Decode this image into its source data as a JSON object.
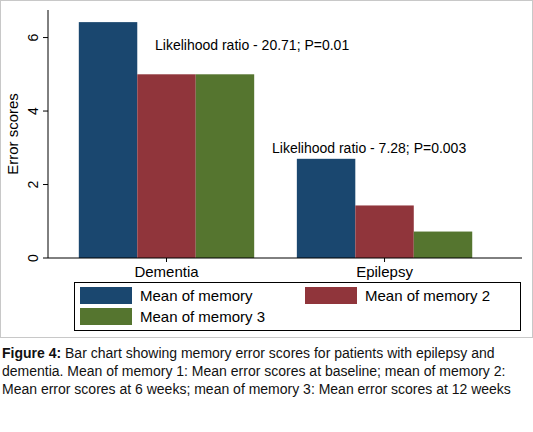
{
  "chart_data": {
    "type": "bar",
    "y_label": "Error scores",
    "categories": [
      "Dementia",
      "Epilepsy"
    ],
    "series": [
      {
        "name": "Mean of memory",
        "color": "#1a476f",
        "values": [
          6.42,
          2.7
        ]
      },
      {
        "name": "Mean of memory 2",
        "color": "#90353b",
        "values": [
          5.0,
          1.43
        ]
      },
      {
        "name": "Mean of memory 3",
        "color": "#55752f",
        "values": [
          5.0,
          0.72
        ]
      }
    ],
    "ylim": [
      0,
      6.75
    ],
    "yticks": [
      0,
      2,
      4,
      6
    ],
    "grid": false,
    "legend": "bottom",
    "annotations": [
      {
        "text": "Likelihood ratio - 20.71; P=0.01",
        "category": 0
      },
      {
        "text": "Likelihood ratio - 7.28; P=0.003",
        "category": 1
      }
    ],
    "figure_label": "Figure 4:",
    "caption": "Bar chart showing memory error scores for patients with epilepsy and dementia. Mean of memory 1: Mean error scores at baseline; mean of memory 2: Mean error scores at 6 weeks; mean of memory 3: Mean error scores at 12 weeks"
  }
}
